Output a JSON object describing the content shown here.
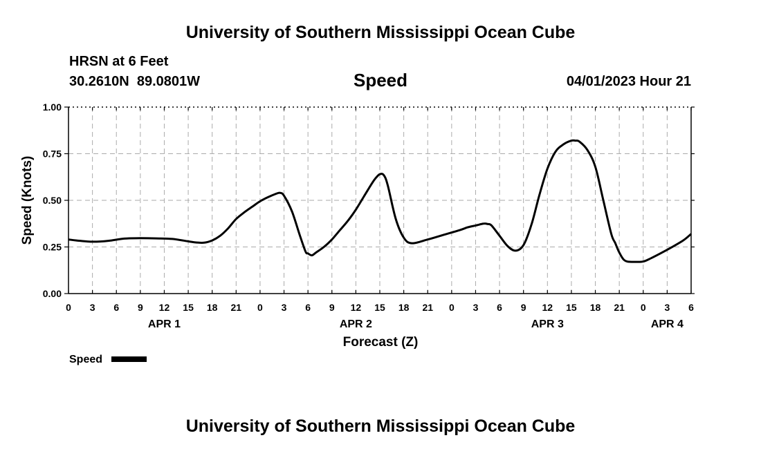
{
  "header": {
    "title_top": "University of Southern Mississippi Ocean Cube",
    "station": "HRSN at 6 Feet",
    "coords": "30.2610N  89.0801W",
    "datetime": "04/01/2023 Hour 21",
    "title_bottom": "University of Southern Mississippi Ocean Cube"
  },
  "chart_data": {
    "type": "line",
    "title": "Speed",
    "xlabel": "Forecast (Z)",
    "ylabel": "Speed (Knots)",
    "xlim": [
      0,
      78
    ],
    "ylim": [
      0,
      1
    ],
    "grid": true,
    "x_ticks": [
      {
        "x": 0,
        "label": "0"
      },
      {
        "x": 3,
        "label": "3"
      },
      {
        "x": 6,
        "label": "6"
      },
      {
        "x": 9,
        "label": "9"
      },
      {
        "x": 12,
        "label": "12"
      },
      {
        "x": 15,
        "label": "15"
      },
      {
        "x": 18,
        "label": "18"
      },
      {
        "x": 21,
        "label": "21"
      },
      {
        "x": 24,
        "label": "0"
      },
      {
        "x": 27,
        "label": "3"
      },
      {
        "x": 30,
        "label": "6"
      },
      {
        "x": 33,
        "label": "9"
      },
      {
        "x": 36,
        "label": "12"
      },
      {
        "x": 39,
        "label": "15"
      },
      {
        "x": 42,
        "label": "18"
      },
      {
        "x": 45,
        "label": "21"
      },
      {
        "x": 48,
        "label": "0"
      },
      {
        "x": 51,
        "label": "3"
      },
      {
        "x": 54,
        "label": "6"
      },
      {
        "x": 57,
        "label": "9"
      },
      {
        "x": 60,
        "label": "12"
      },
      {
        "x": 63,
        "label": "15"
      },
      {
        "x": 66,
        "label": "18"
      },
      {
        "x": 69,
        "label": "21"
      },
      {
        "x": 72,
        "label": "0"
      },
      {
        "x": 75,
        "label": "3"
      },
      {
        "x": 78,
        "label": "6"
      }
    ],
    "y_ticks": [
      {
        "y": 0,
        "label": "0.00"
      },
      {
        "y": 0.25,
        "label": "0.25"
      },
      {
        "y": 0.5,
        "label": "0.50"
      },
      {
        "y": 0.75,
        "label": "0.75"
      },
      {
        "y": 1,
        "label": "1.00"
      }
    ],
    "day_labels": [
      {
        "x": 12,
        "label": "APR 1"
      },
      {
        "x": 36,
        "label": "APR 2"
      },
      {
        "x": 60,
        "label": "APR 3"
      },
      {
        "x": 75,
        "label": "APR 4"
      }
    ],
    "legend": "bottom-left",
    "series": [
      {
        "name": "Speed",
        "color": "#000000",
        "x": [
          0,
          1,
          3,
          5,
          7,
          9,
          11,
          13,
          15,
          16,
          17,
          18,
          19,
          20,
          21,
          22,
          23,
          24,
          25,
          26,
          26.5,
          27,
          28,
          29,
          29.7,
          30,
          30.5,
          31,
          32,
          33,
          34,
          35,
          36,
          37,
          38,
          38.5,
          39,
          39.5,
          40,
          41,
          42,
          43,
          45,
          47,
          49,
          50,
          51,
          52,
          52.5,
          53,
          54,
          55,
          56,
          57,
          58,
          59,
          60,
          61,
          62,
          63,
          63.5,
          64,
          65,
          66,
          67,
          68,
          68.5,
          69,
          69.5,
          70,
          71,
          72,
          73,
          75,
          77,
          78
        ],
        "values": [
          0.29,
          0.285,
          0.278,
          0.283,
          0.295,
          0.297,
          0.296,
          0.293,
          0.28,
          0.274,
          0.273,
          0.285,
          0.31,
          0.35,
          0.4,
          0.435,
          0.465,
          0.495,
          0.517,
          0.535,
          0.54,
          0.525,
          0.44,
          0.31,
          0.225,
          0.215,
          0.205,
          0.22,
          0.25,
          0.29,
          0.34,
          0.39,
          0.45,
          0.52,
          0.59,
          0.62,
          0.64,
          0.635,
          0.58,
          0.4,
          0.3,
          0.27,
          0.29,
          0.315,
          0.34,
          0.355,
          0.365,
          0.375,
          0.373,
          0.365,
          0.31,
          0.255,
          0.23,
          0.26,
          0.37,
          0.53,
          0.67,
          0.76,
          0.8,
          0.82,
          0.82,
          0.815,
          0.77,
          0.68,
          0.5,
          0.32,
          0.27,
          0.22,
          0.185,
          0.172,
          0.17,
          0.172,
          0.19,
          0.235,
          0.285,
          0.32
        ]
      }
    ]
  }
}
